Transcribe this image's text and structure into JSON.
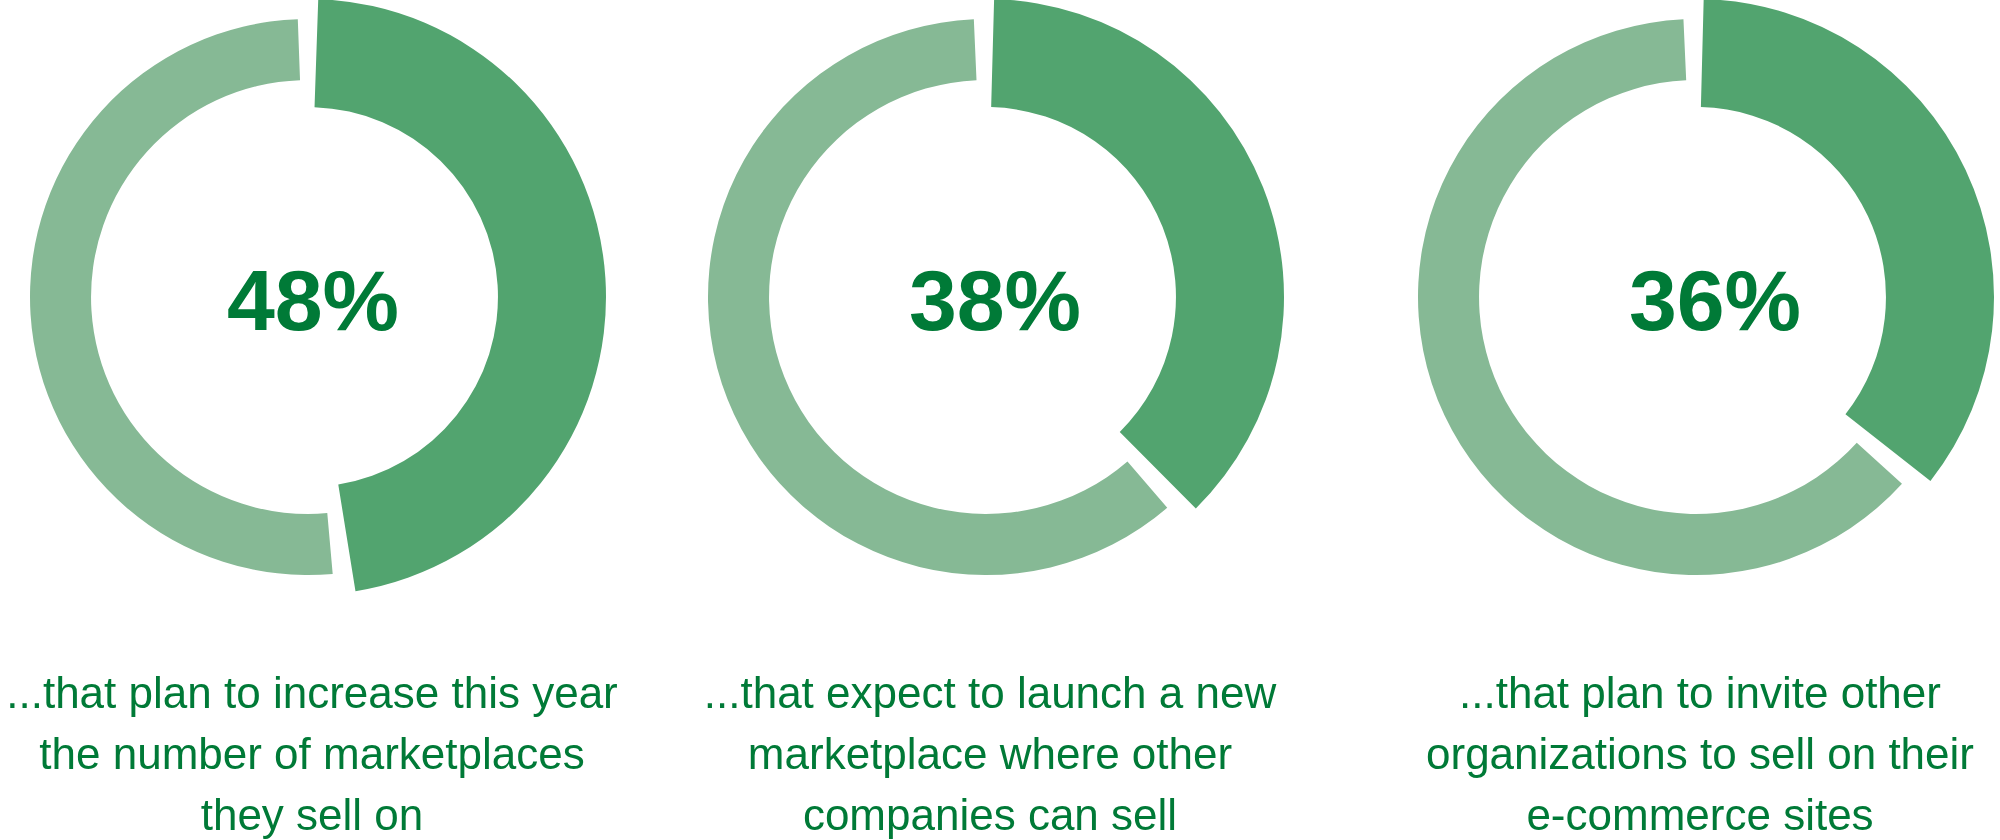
{
  "chart_data": [
    {
      "type": "donut",
      "title": "...that plan to increase this year the number of marketplaces they sell on",
      "categories": [
        null,
        null
      ],
      "values": [
        48,
        52
      ],
      "colors": [
        "#52a46f",
        "#86b995"
      ],
      "value_labels": [
        "48%",
        null
      ]
    },
    {
      "type": "donut",
      "title": "...that expect to launch a new marketplace where other companies can sell",
      "categories": [
        null,
        null
      ],
      "values": [
        38,
        62
      ],
      "colors": [
        "#52a46f",
        "#86b995"
      ],
      "value_labels": [
        "38%",
        null
      ]
    },
    {
      "type": "donut",
      "title": "...that plan to invite other organizations to sell on their e-commerce sites",
      "categories": [
        null,
        null
      ],
      "values": [
        36,
        64
      ],
      "colors": [
        "#52a46f",
        "#86b995"
      ],
      "value_labels": [
        "36%",
        null
      ]
    }
  ]
}
